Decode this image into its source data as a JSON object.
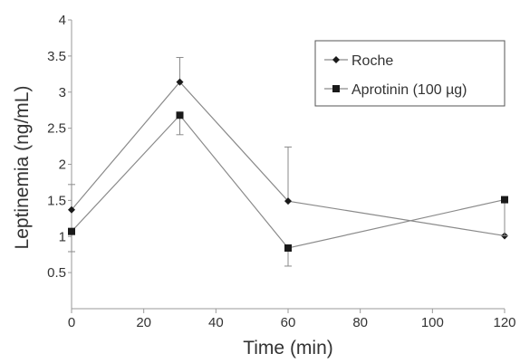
{
  "chart_data": {
    "type": "line",
    "xlabel": "Time (min)",
    "ylabel": "Leptinemia (ng/mL)",
    "xlim": [
      0,
      120
    ],
    "ylim": [
      0,
      4
    ],
    "xticks": [
      0,
      20,
      40,
      60,
      80,
      100,
      120
    ],
    "yticks": [
      0.5,
      1,
      1.5,
      2,
      2.5,
      3,
      3.5,
      4
    ],
    "grid": false,
    "legend_position": "top-right",
    "series": [
      {
        "name": "Roche",
        "marker": "diamond",
        "color": "#8a8a8a",
        "x": [
          0,
          30,
          60,
          120
        ],
        "y": [
          1.37,
          3.14,
          1.49,
          1.01
        ],
        "error_plus": [
          0.35,
          0.34,
          0.75,
          0
        ],
        "error_minus": [
          0,
          0,
          0,
          0
        ]
      },
      {
        "name": "Aprotinin (100 µg)",
        "marker": "square",
        "color": "#8a8a8a",
        "x": [
          0,
          30,
          60,
          120
        ],
        "y": [
          1.07,
          2.68,
          0.84,
          1.51
        ],
        "error_plus": [
          0,
          0,
          0,
          0
        ],
        "error_minus": [
          0.28,
          0.27,
          0.25,
          0.5
        ]
      }
    ]
  }
}
